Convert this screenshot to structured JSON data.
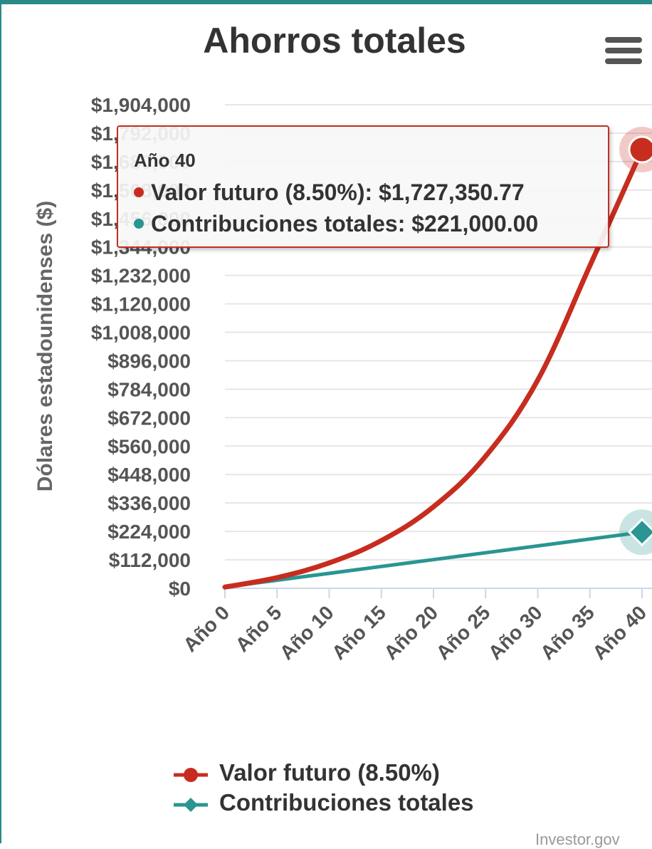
{
  "chart_data": {
    "type": "line",
    "title": "Ahorros totales",
    "ylabel": "Dólares estadounidenses ($)",
    "xlabel": "",
    "x_tick_labels": [
      "Año 0",
      "Año 5",
      "Año 10",
      "Año 15",
      "Año 20",
      "Año 25",
      "Año 30",
      "Año 35",
      "Año 40"
    ],
    "y_tick_labels": [
      "$0",
      "$112,000",
      "$224,000",
      "$336,000",
      "$448,000",
      "$560,000",
      "$672,000",
      "$784,000",
      "$896,000",
      "$1,008,000",
      "$1,120,000",
      "$1,232,000",
      "$1,344,000",
      "$1,456,000",
      "$1,568,000",
      "$1,680,000",
      "$1,792,000",
      "$1,904,000"
    ],
    "y_ticks": [
      0,
      112000,
      224000,
      336000,
      448000,
      560000,
      672000,
      784000,
      896000,
      1008000,
      1120000,
      1232000,
      1344000,
      1456000,
      1568000,
      1680000,
      1792000,
      1904000
    ],
    "ylim": [
      0,
      1904000
    ],
    "xlim": [
      0,
      40
    ],
    "x": [
      0,
      5,
      10,
      15,
      20,
      25,
      30,
      35,
      40
    ],
    "grid": true,
    "legend_position": "bottom-center",
    "series": [
      {
        "name": "Valor futuro (8.50%)",
        "color": "#c62d1f",
        "marker": "circle",
        "values": [
          5000,
          42000,
          100000,
          188000,
          321000,
          520000,
          820000,
          1270000,
          1727350.77
        ]
      },
      {
        "name": "Contribuciones totales",
        "color": "#2a9592",
        "marker": "diamond",
        "values": [
          5000,
          32000,
          59000,
          86000,
          113000,
          140000,
          167000,
          194000,
          221000
        ]
      }
    ]
  },
  "tooltip": {
    "header": "Año 40",
    "rows": [
      {
        "label": "Valor futuro (8.50%):",
        "value": "$1,727,350.77",
        "color": "#c62d1f"
      },
      {
        "label": "Contribuciones totales:",
        "value": "$221,000.00",
        "color": "#2a9592"
      }
    ]
  },
  "credits": "Investor.gov"
}
